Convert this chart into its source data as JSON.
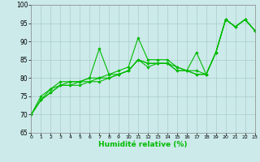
{
  "xlabel": "Humidité relative (%)",
  "bg_color": "#cceaea",
  "grid_color": "#aacccc",
  "line_color": "#00bb00",
  "xlim": [
    0,
    23
  ],
  "ylim": [
    65,
    100
  ],
  "yticks": [
    65,
    70,
    75,
    80,
    85,
    90,
    95,
    100
  ],
  "xticks": [
    0,
    1,
    2,
    3,
    4,
    5,
    6,
    7,
    8,
    9,
    10,
    11,
    12,
    13,
    14,
    15,
    16,
    17,
    18,
    19,
    20,
    21,
    22,
    23
  ],
  "series": [
    [
      70,
      75,
      77,
      79,
      79,
      79,
      80,
      80,
      81,
      82,
      83,
      91,
      85,
      85,
      85,
      83,
      82,
      82,
      81,
      87,
      96,
      94,
      96,
      93
    ],
    [
      70,
      74,
      77,
      78,
      79,
      79,
      80,
      88,
      81,
      81,
      82,
      85,
      83,
      84,
      84,
      82,
      82,
      87,
      81,
      87,
      96,
      94,
      96,
      93
    ],
    [
      70,
      74,
      76,
      78,
      78,
      79,
      79,
      80,
      80,
      81,
      82,
      85,
      84,
      84,
      84,
      83,
      82,
      81,
      81,
      87,
      96,
      94,
      96,
      93
    ],
    [
      70,
      74,
      76,
      78,
      78,
      78,
      79,
      79,
      80,
      81,
      82,
      85,
      84,
      84,
      84,
      82,
      82,
      81,
      81,
      87,
      96,
      94,
      96,
      93
    ]
  ]
}
